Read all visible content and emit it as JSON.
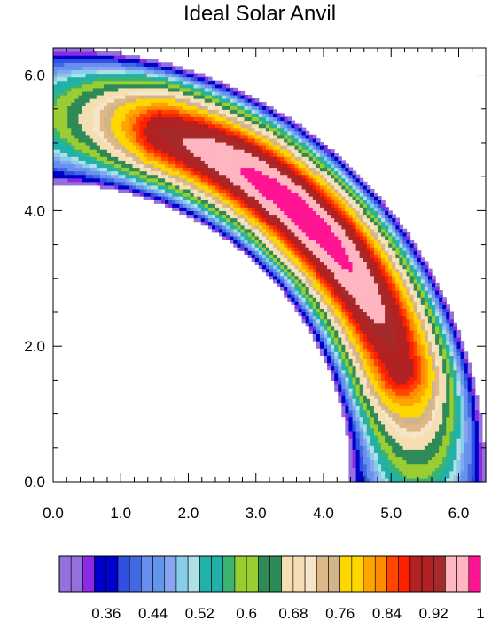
{
  "chart_data": {
    "type": "filled-contour",
    "title": "Ideal Solar Anvil",
    "xlabel": "",
    "ylabel": "",
    "xlim": [
      0.0,
      6.4
    ],
    "ylim": [
      0.0,
      6.4
    ],
    "x_ticks": [
      "0.0",
      "1.0",
      "2.0",
      "3.0",
      "4.0",
      "5.0",
      "6.0"
    ],
    "y_ticks": [
      "0.0",
      "2.0",
      "4.0",
      "6.0"
    ],
    "grid": false,
    "field": {
      "shape": "quarter-annulus band centred at origin",
      "inner_radius": 4.4,
      "outer_radius": 6.4,
      "peak_center": [
        3.6,
        3.9
      ],
      "peak_value": 1.0,
      "min_value": 0.28
    },
    "colorbar": {
      "orientation": "horizontal",
      "levels_min": 0.28,
      "levels_step": 0.02,
      "colors": [
        "#9370DB",
        "#9370DB",
        "#8A2BE2",
        "#0000CD",
        "#0000CD",
        "#3050E0",
        "#4169E1",
        "#6A8DF0",
        "#6495ED",
        "#87A5F0",
        "#87CEEB",
        "#B0E0E6",
        "#20B2AA",
        "#20B2AA",
        "#3CB371",
        "#9ACD32",
        "#9ACD32",
        "#2E8B57",
        "#2E8B57",
        "#F5DEB3",
        "#F5DEB3",
        "#F5E6C8",
        "#DEB887",
        "#D2B48C",
        "#FFD700",
        "#FFD700",
        "#FFA500",
        "#FF8C00",
        "#FF4500",
        "#FF2000",
        "#B22222",
        "#B22222",
        "#A52A2A",
        "#FFB6C1",
        "#FFB6C1",
        "#FF1493"
      ],
      "tick_labels": [
        "0.36",
        "0.44",
        "0.52",
        "0.6",
        "0.68",
        "0.76",
        "0.84",
        "0.92",
        "1"
      ]
    }
  }
}
